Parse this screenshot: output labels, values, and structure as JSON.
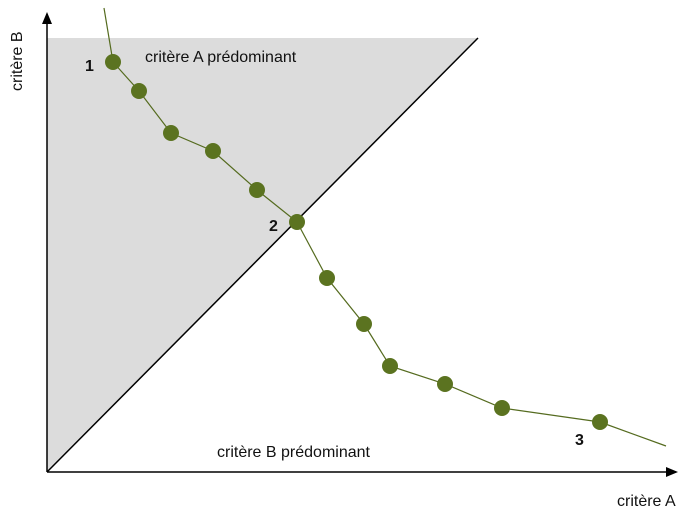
{
  "axes": {
    "x_label": "critère A",
    "y_label": "critère B"
  },
  "regions": {
    "a_label": "critère A prédominant",
    "b_label": "critère B prédominant"
  },
  "points": {
    "label_1": "1",
    "label_2": "2",
    "label_3": "3"
  },
  "colors": {
    "shaded_region": "#dcdcdc",
    "curve": "#556b1f",
    "marker": "#5b7320",
    "axis": "#000000"
  }
}
